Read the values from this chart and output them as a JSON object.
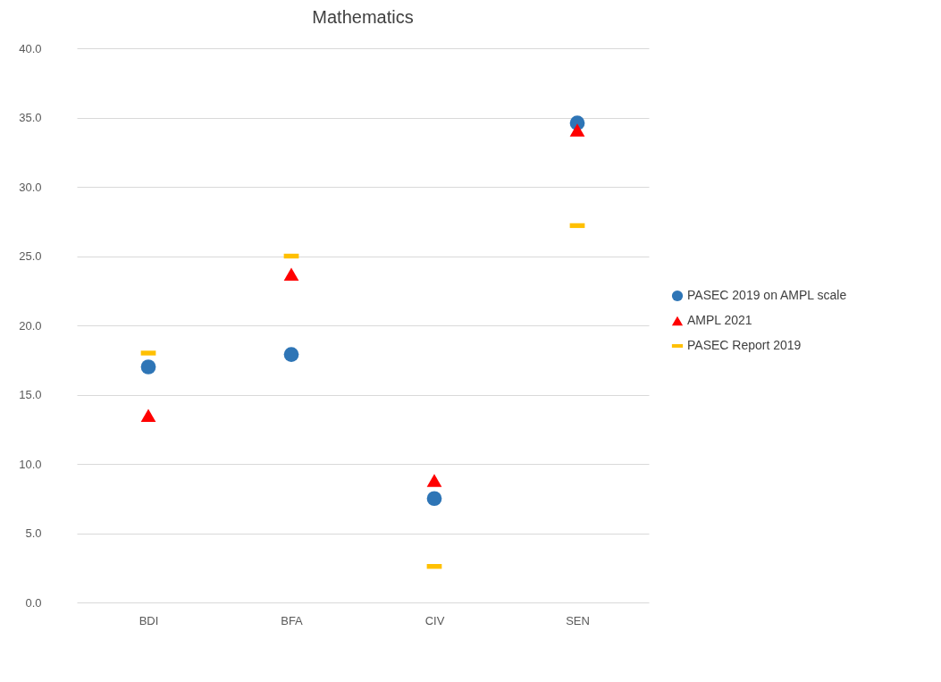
{
  "chart_data": {
    "type": "scatter",
    "title": "Mathematics",
    "categories": [
      "BDI",
      "BFA",
      "CIV",
      "SEN"
    ],
    "series": [
      {
        "name": "PASEC 2019 on AMPL scale",
        "color": "#2e75b6",
        "marker": "circle",
        "values": [
          17.0,
          17.9,
          7.5,
          34.6
        ]
      },
      {
        "name": "AMPL 2021",
        "color": "#ff0000",
        "marker": "triangle",
        "values": [
          13.5,
          23.7,
          8.8,
          34.1
        ]
      },
      {
        "name": "PASEC Report 2019",
        "color": "#ffc000",
        "marker": "square",
        "values": [
          18.0,
          25.0,
          2.6,
          27.2
        ]
      }
    ],
    "ylim": [
      0,
      40
    ],
    "yticks": [
      {
        "value": 0,
        "label": "0.0"
      },
      {
        "value": 5,
        "label": "5.0"
      },
      {
        "value": 10,
        "label": "10.0"
      },
      {
        "value": 15,
        "label": "15.0"
      },
      {
        "value": 20,
        "label": "20.0"
      },
      {
        "value": 25,
        "label": "25.0"
      },
      {
        "value": 30,
        "label": "30.0"
      },
      {
        "value": 35,
        "label": "35.0"
      },
      {
        "value": 40,
        "label": "40.0"
      }
    ],
    "grid": "y",
    "legend": "right"
  }
}
